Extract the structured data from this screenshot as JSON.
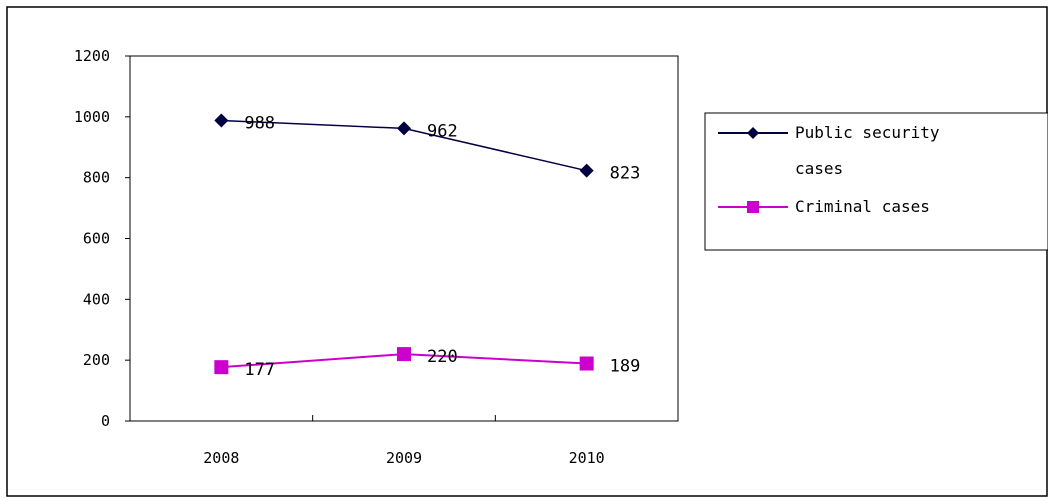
{
  "chart_data": {
    "type": "line",
    "categories": [
      "2008",
      "2009",
      "2010"
    ],
    "series": [
      {
        "name": "Public security cases",
        "values": [
          988,
          962,
          823
        ],
        "color": "#000040",
        "marker": "diamond"
      },
      {
        "name": "Criminal cases",
        "values": [
          177,
          220,
          189
        ],
        "color": "#cc00cc",
        "marker": "square"
      }
    ],
    "legend": {
      "position": "right",
      "entries": [
        {
          "lines": [
            "Public security",
            "cases"
          ]
        },
        {
          "lines": [
            "Criminal cases"
          ]
        }
      ]
    },
    "ylim": [
      0,
      1200
    ],
    "yticks": [
      "0",
      "200",
      "400",
      "600",
      "800",
      "1000",
      "1200"
    ],
    "grid": false,
    "title": "",
    "xlabel": "",
    "ylabel": ""
  }
}
